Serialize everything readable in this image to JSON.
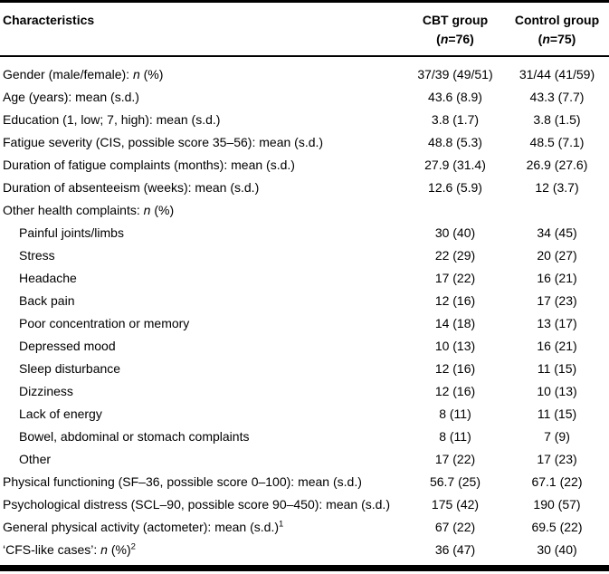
{
  "table": {
    "header": {
      "characteristics": "Characteristics",
      "cbt": {
        "line1": "CBT group",
        "line2": "(n=76)"
      },
      "control": {
        "line1": "Control group",
        "line2": "(n=75)"
      }
    },
    "rows": [
      {
        "label": "Gender (male/female): n (%)",
        "indent": false,
        "cbt": "37/39 (49/51)",
        "control": "31/44 (41/59)"
      },
      {
        "label": "Age (years): mean (s.d.)",
        "indent": false,
        "cbt": "43.6 (8.9)",
        "control": "43.3 (7.7)"
      },
      {
        "label": "Education (1, low; 7, high): mean (s.d.)",
        "indent": false,
        "cbt": "3.8 (1.7)",
        "control": "3.8 (1.5)"
      },
      {
        "label": "Fatigue severity (CIS, possible score 35–56): mean (s.d.)",
        "indent": false,
        "cbt": "48.8 (5.3)",
        "control": "48.5 (7.1)"
      },
      {
        "label": "Duration of fatigue complaints (months): mean (s.d.)",
        "indent": false,
        "cbt": "27.9 (31.4)",
        "control": "26.9 (27.6)"
      },
      {
        "label": "Duration of absenteeism (weeks): mean (s.d.)",
        "indent": false,
        "cbt": "12.6 (5.9)",
        "control": "12 (3.7)"
      },
      {
        "label": "Other health complaints: n (%)",
        "indent": false,
        "cbt": "",
        "control": ""
      },
      {
        "label": "Painful joints/limbs",
        "indent": true,
        "cbt": "30 (40)",
        "control": "34 (45)"
      },
      {
        "label": "Stress",
        "indent": true,
        "cbt": "22 (29)",
        "control": "20 (27)"
      },
      {
        "label": "Headache",
        "indent": true,
        "cbt": "17 (22)",
        "control": "16 (21)"
      },
      {
        "label": "Back pain",
        "indent": true,
        "cbt": "12 (16)",
        "control": "17 (23)"
      },
      {
        "label": "Poor concentration or memory",
        "indent": true,
        "cbt": "14 (18)",
        "control": "13 (17)"
      },
      {
        "label": "Depressed mood",
        "indent": true,
        "cbt": "10 (13)",
        "control": "16 (21)"
      },
      {
        "label": "Sleep disturbance",
        "indent": true,
        "cbt": "12 (16)",
        "control": "11 (15)"
      },
      {
        "label": "Dizziness",
        "indent": true,
        "cbt": "12 (16)",
        "control": "10 (13)"
      },
      {
        "label": "Lack of energy",
        "indent": true,
        "cbt": "8 (11)",
        "control": "11 (15)"
      },
      {
        "label": "Bowel, abdominal or stomach complaints",
        "indent": true,
        "cbt": "8 (11)",
        "control": "7 (9)"
      },
      {
        "label": "Other",
        "indent": true,
        "cbt": "17 (22)",
        "control": "17 (23)"
      },
      {
        "label": "Physical functioning (SF–36, possible score 0–100): mean (s.d.)",
        "indent": false,
        "cbt": "56.7 (25)",
        "control": "67.1 (22)"
      },
      {
        "label": "Psychological distress (SCL–90, possible score 90–450): mean (s.d.)",
        "indent": false,
        "cbt": "175 (42)",
        "control": "190 (57)"
      },
      {
        "label": "General physical activity (actometer): mean (s.d.)",
        "sup": "1",
        "indent": false,
        "cbt": "67 (22)",
        "control": "69.5 (22)"
      },
      {
        "label": "‘CFS-like cases’: n (%)",
        "sup": "2",
        "indent": false,
        "cbt": "36 (47)",
        "control": "30 (40)"
      }
    ]
  }
}
